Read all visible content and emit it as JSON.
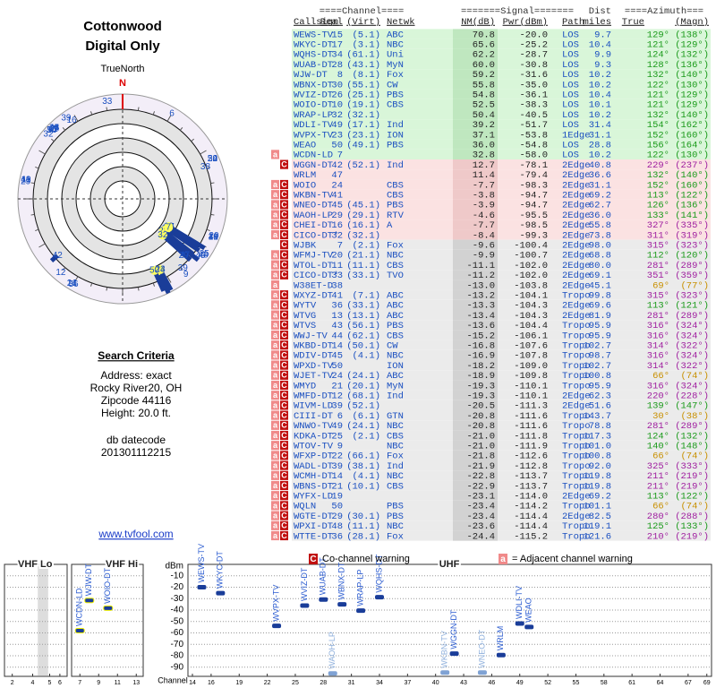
{
  "header": {
    "title": "Cottonwood",
    "subtitle": "Digital Only"
  },
  "compass": {
    "label": "TrueNorth",
    "north": "N"
  },
  "search": {
    "heading": "Search Criteria",
    "lines": [
      "Address: exact",
      "Rocky River20, OH",
      "Zipcode 44116",
      "Height: 20.0 ft."
    ],
    "datecode_label": "db datecode",
    "datecode": "201301112215"
  },
  "link": "www.tvfool.com",
  "table": {
    "groups": [
      "====Channel====",
      "=======Signal=======",
      "Dist",
      "====Azimuth==="
    ],
    "columns": [
      "Callsign",
      "Real",
      "(Virt)",
      "Netwk",
      "NM(dB)",
      "Pwr(dBm)",
      "Path",
      "miles",
      "True",
      "(Magn)"
    ],
    "rows": [
      {
        "call": "WEWS-TV",
        "real": "15",
        "virt": "(5.1)",
        "net": "ABC",
        "nm": "70.8",
        "pwr": "-20.0",
        "path": "LOS",
        "dist": "9.7",
        "az": "129°",
        "magn": "(138°)"
      },
      {
        "call": "WKYC-DT",
        "real": "17",
        "virt": "(3.1)",
        "net": "NBC",
        "nm": "65.6",
        "pwr": "-25.2",
        "path": "LOS",
        "dist": "10.4",
        "az": "121°",
        "magn": "(129°)"
      },
      {
        "call": "WQHS-DT",
        "real": "34",
        "virt": "(61.1)",
        "net": "Uni",
        "nm": "62.2",
        "pwr": "-28.7",
        "path": "LOS",
        "dist": "9.9",
        "az": "124°",
        "magn": "(132°)"
      },
      {
        "call": "WUAB-DT",
        "real": "28",
        "virt": "(43.1)",
        "net": "MyN",
        "nm": "60.0",
        "pwr": "-30.8",
        "path": "LOS",
        "dist": "9.3",
        "az": "128°",
        "magn": "(136°)"
      },
      {
        "call": "WJW-DT",
        "real": "8",
        "virt": "(8.1)",
        "net": "Fox",
        "nm": "59.2",
        "pwr": "-31.6",
        "path": "LOS",
        "dist": "10.2",
        "az": "132°",
        "magn": "(140°)"
      },
      {
        "call": "WBNX-DT",
        "real": "30",
        "virt": "(55.1)",
        "net": "CW",
        "nm": "55.8",
        "pwr": "-35.0",
        "path": "LOS",
        "dist": "10.2",
        "az": "122°",
        "magn": "(130°)"
      },
      {
        "call": "WVIZ-DT",
        "real": "26",
        "virt": "(25.1)",
        "net": "PBS",
        "nm": "54.8",
        "pwr": "-36.1",
        "path": "LOS",
        "dist": "10.4",
        "az": "121°",
        "magn": "(129°)"
      },
      {
        "call": "WOIO-DT",
        "real": "10",
        "virt": "(19.1)",
        "net": "CBS",
        "nm": "52.5",
        "pwr": "-38.3",
        "path": "LOS",
        "dist": "10.1",
        "az": "121°",
        "magn": "(129°)"
      },
      {
        "call": "WRAP-LP",
        "real": "32",
        "virt": "(32.1)",
        "nm": "50.4",
        "pwr": "-40.5",
        "path": "LOS",
        "dist": "10.2",
        "az": "132°",
        "magn": "(140°)"
      },
      {
        "call": "WDLI-TV",
        "real": "49",
        "virt": "(17.1)",
        "net": "Ind",
        "nm": "39.2",
        "pwr": "-51.7",
        "path": "LOS",
        "dist": "31.4",
        "az": "154°",
        "magn": "(162°)"
      },
      {
        "call": "WVPX-TV",
        "real": "23",
        "virt": "(23.1)",
        "net": "ION",
        "nm": "37.1",
        "pwr": "-53.8",
        "path": "1Edge",
        "dist": "31.1",
        "az": "152°",
        "magn": "(160°)"
      },
      {
        "call": "WEAO",
        "real": "50",
        "virt": "(49.1)",
        "net": "PBS",
        "nm": "36.0",
        "pwr": "-54.8",
        "path": "LOS",
        "dist": "28.8",
        "az": "156°",
        "magn": "(164°)"
      },
      {
        "call": "WCDN-LD",
        "real": "7",
        "nm": "32.8",
        "pwr": "-58.0",
        "path": "LOS",
        "dist": "10.2",
        "az": "122°",
        "magn": "(130°)",
        "warn": [
          "a"
        ]
      },
      {
        "call": "WGGN-DT",
        "real": "42",
        "virt": "(52.1)",
        "net": "Ind",
        "nm": "12.7",
        "pwr": "-78.1",
        "path": "2Edge",
        "dist": "40.8",
        "az": "229°",
        "magn": "(237°)",
        "warn": [
          "C"
        ]
      },
      {
        "call": "WRLM",
        "real": "47",
        "nm": "11.4",
        "pwr": "-79.4",
        "path": "2Edge",
        "dist": "36.6",
        "az": "132°",
        "magn": "(140°)"
      },
      {
        "call": "WOIO",
        "real": "24",
        "net": "CBS",
        "nm": "-7.7",
        "pwr": "-98.3",
        "path": "2Edge",
        "dist": "31.1",
        "az": "152°",
        "magn": "(160°)",
        "warn": [
          "a",
          "C"
        ]
      },
      {
        "call": "WKBN-TV",
        "real": "41",
        "net": "CBS",
        "nm": "-3.8",
        "pwr": "-94.7",
        "path": "2Edge",
        "dist": "69.2",
        "az": "113°",
        "magn": "(122°)",
        "warn": [
          "a",
          "C"
        ]
      },
      {
        "call": "WNEO-DT",
        "real": "45",
        "virt": "(45.1)",
        "net": "PBS",
        "nm": "-3.9",
        "pwr": "-94.7",
        "path": "2Edge",
        "dist": "62.7",
        "az": "126°",
        "magn": "(136°)",
        "warn": [
          "a",
          "C"
        ]
      },
      {
        "call": "WAOH-LP",
        "real": "29",
        "virt": "(29.1)",
        "net": "RTV",
        "nm": "-4.6",
        "pwr": "-95.5",
        "path": "2Edge",
        "dist": "36.0",
        "az": "133°",
        "magn": "(141°)",
        "warn": [
          "a",
          "C"
        ]
      },
      {
        "call": "CHEI-DT",
        "real": "16",
        "virt": "(16.1)",
        "net": "A",
        "nm": "-7.7",
        "pwr": "-98.5",
        "path": "2Edge",
        "dist": "55.8",
        "az": "327°",
        "magn": "(335°)",
        "warn": [
          "a",
          "C"
        ]
      },
      {
        "call": "CICO-DT*",
        "real": "32",
        "virt": "(32.1)",
        "nm": "-8.4",
        "pwr": "-99.3",
        "path": "2Edge",
        "dist": "73.8",
        "az": "311°",
        "magn": "(319°)",
        "warn": [
          "a",
          "C"
        ]
      },
      {
        "call": "WJBK",
        "real": "7",
        "virt": "(2.1)",
        "net": "Fox",
        "nm": "-9.6",
        "pwr": "-100.4",
        "path": "2Edge",
        "dist": "98.0",
        "az": "315°",
        "magn": "(323°)",
        "warn": [
          "C"
        ]
      },
      {
        "call": "WFMJ-TV",
        "real": "20",
        "virt": "(21.1)",
        "net": "NBC",
        "nm": "-9.9",
        "pwr": "-100.7",
        "path": "2Edge",
        "dist": "68.8",
        "az": "112°",
        "magn": "(120°)",
        "warn": [
          "a",
          "C"
        ]
      },
      {
        "call": "WTOL-DT",
        "real": "11",
        "virt": "(11.1)",
        "net": "CBS",
        "nm": "-11.1",
        "pwr": "-102.0",
        "path": "2Edge",
        "dist": "80.0",
        "az": "281°",
        "magn": "(289°)",
        "warn": [
          "a",
          "C"
        ]
      },
      {
        "call": "CICO-DT*",
        "real": "33",
        "virt": "(33.1)",
        "net": "TVO",
        "nm": "-11.2",
        "pwr": "-102.0",
        "path": "2Edge",
        "dist": "69.1",
        "az": "351°",
        "magn": "(359°)",
        "warn": [
          "a",
          "C"
        ]
      },
      {
        "call": "W38ET-D",
        "real": "38",
        "nm": "-13.0",
        "pwr": "-103.8",
        "path": "2Edge",
        "dist": "45.1",
        "az": "69°",
        "magn": "(77°)",
        "warn": [
          "a"
        ]
      },
      {
        "call": "WXYZ-DT",
        "real": "41",
        "virt": "(7.1)",
        "net": "ABC",
        "nm": "-13.2",
        "pwr": "-104.1",
        "path": "Tropo",
        "dist": "99.8",
        "az": "315°",
        "magn": "(323°)",
        "warn": [
          "a",
          "C"
        ]
      },
      {
        "call": "WYTV",
        "real": "36",
        "virt": "(33.1)",
        "net": "ABC",
        "nm": "-13.3",
        "pwr": "-104.3",
        "path": "2Edge",
        "dist": "69.6",
        "az": "113°",
        "magn": "(121°)",
        "warn": [
          "a",
          "C"
        ]
      },
      {
        "call": "WTVG",
        "real": "13",
        "virt": "(13.1)",
        "net": "ABC",
        "nm": "-13.4",
        "pwr": "-104.3",
        "path": "2Edge",
        "dist": "81.9",
        "az": "281°",
        "magn": "(289°)",
        "warn": [
          "a",
          "C"
        ]
      },
      {
        "call": "WTVS",
        "real": "43",
        "virt": "(56.1)",
        "net": "PBS",
        "nm": "-13.6",
        "pwr": "-104.4",
        "path": "Tropo",
        "dist": "95.9",
        "az": "316°",
        "magn": "(324°)",
        "warn": [
          "a",
          "C"
        ]
      },
      {
        "call": "WWJ-TV",
        "real": "44",
        "virt": "(62.1)",
        "net": "CBS",
        "nm": "-15.2",
        "pwr": "-106.1",
        "path": "Tropo",
        "dist": "95.9",
        "az": "316°",
        "magn": "(324°)",
        "warn": [
          "a",
          "C"
        ]
      },
      {
        "call": "WKBD-DT",
        "real": "14",
        "virt": "(50.1)",
        "net": "CW",
        "nm": "-16.8",
        "pwr": "-107.6",
        "path": "Tropo",
        "dist": "102.7",
        "az": "314°",
        "magn": "(322°)",
        "warn": [
          "a",
          "C"
        ]
      },
      {
        "call": "WDIV-DT",
        "real": "45",
        "virt": "(4.1)",
        "net": "NBC",
        "nm": "-16.9",
        "pwr": "-107.8",
        "path": "Tropo",
        "dist": "98.7",
        "az": "316°",
        "magn": "(324°)",
        "warn": [
          "a",
          "C"
        ]
      },
      {
        "call": "WPXD-TV",
        "real": "50",
        "net": "ION",
        "nm": "-18.2",
        "pwr": "-109.0",
        "path": "Tropo",
        "dist": "102.7",
        "az": "314°",
        "magn": "(322°)",
        "warn": [
          "a",
          "C"
        ]
      },
      {
        "call": "WJET-TV",
        "real": "24",
        "virt": "(24.1)",
        "net": "ABC",
        "nm": "-18.9",
        "pwr": "-109.8",
        "path": "Tropo",
        "dist": "100.8",
        "az": "66°",
        "magn": "(74°)",
        "warn": [
          "a",
          "C"
        ]
      },
      {
        "call": "WMYD",
        "real": "21",
        "virt": "(20.1)",
        "net": "MyN",
        "nm": "-19.3",
        "pwr": "-110.1",
        "path": "Tropo",
        "dist": "95.9",
        "az": "316°",
        "magn": "(324°)",
        "warn": [
          "a",
          "C"
        ]
      },
      {
        "call": "WMFD-DT",
        "real": "12",
        "virt": "(68.1)",
        "net": "Ind",
        "nm": "-19.3",
        "pwr": "-110.1",
        "path": "2Edge",
        "dist": "62.3",
        "az": "220°",
        "magn": "(228°)",
        "warn": [
          "a",
          "C"
        ]
      },
      {
        "call": "WIVM-LD",
        "real": "39",
        "virt": "(52.1)",
        "nm": "-20.5",
        "pwr": "-111.3",
        "path": "2Edge",
        "dist": "51.6",
        "az": "139°",
        "magn": "(147°)",
        "warn": [
          "a",
          "C"
        ]
      },
      {
        "call": "CIII-DT",
        "real": "6",
        "virt": "(6.1)",
        "net": "GTN",
        "nm": "-20.8",
        "pwr": "-111.6",
        "path": "Tropo",
        "dist": "143.7",
        "az": "30°",
        "magn": "(38°)",
        "warn": [
          "a",
          "C"
        ]
      },
      {
        "call": "WNWO-TV",
        "real": "49",
        "virt": "(24.1)",
        "net": "NBC",
        "nm": "-20.8",
        "pwr": "-111.6",
        "path": "Tropo",
        "dist": "78.8",
        "az": "281°",
        "magn": "(289°)",
        "warn": [
          "a",
          "C"
        ]
      },
      {
        "call": "KDKA-DT",
        "real": "25",
        "virt": "(2.1)",
        "net": "CBS",
        "nm": "-21.0",
        "pwr": "-111.8",
        "path": "Tropo",
        "dist": "117.3",
        "az": "124°",
        "magn": "(132°)",
        "warn": [
          "a",
          "C"
        ]
      },
      {
        "call": "WTOV-TV",
        "real": "9",
        "net": "NBC",
        "nm": "-21.0",
        "pwr": "-111.9",
        "path": "Tropo",
        "dist": "101.0",
        "az": "140°",
        "magn": "(148°)",
        "warn": [
          "a",
          "C"
        ]
      },
      {
        "call": "WFXP-DT",
        "real": "22",
        "virt": "(66.1)",
        "net": "Fox",
        "nm": "-21.8",
        "pwr": "-112.6",
        "path": "Tropo",
        "dist": "100.8",
        "az": "66°",
        "magn": "(74°)",
        "warn": [
          "a",
          "C"
        ]
      },
      {
        "call": "WADL-DT",
        "real": "39",
        "virt": "(38.1)",
        "net": "Ind",
        "nm": "-21.9",
        "pwr": "-112.8",
        "path": "Tropo",
        "dist": "92.0",
        "az": "325°",
        "magn": "(333°)",
        "warn": [
          "a",
          "C"
        ]
      },
      {
        "call": "WCMH-DT",
        "real": "14",
        "virt": "(4.1)",
        "net": "NBC",
        "nm": "-22.8",
        "pwr": "-113.7",
        "path": "Tropo",
        "dist": "119.8",
        "az": "211°",
        "magn": "(219°)",
        "warn": [
          "a",
          "C"
        ]
      },
      {
        "call": "WBNS-DT",
        "real": "21",
        "virt": "(10.1)",
        "net": "CBS",
        "nm": "-22.9",
        "pwr": "-113.7",
        "path": "Tropo",
        "dist": "119.8",
        "az": "211°",
        "magn": "(219°)",
        "warn": [
          "a",
          "C"
        ]
      },
      {
        "call": "WYFX-LD",
        "real": "19",
        "nm": "-23.1",
        "pwr": "-114.0",
        "path": "2Edge",
        "dist": "69.2",
        "az": "113°",
        "magn": "(122°)",
        "warn": [
          "a",
          "C"
        ]
      },
      {
        "call": "WQLN",
        "real": "50",
        "net": "PBS",
        "nm": "-23.4",
        "pwr": "-114.2",
        "path": "Tropo",
        "dist": "101.1",
        "az": "66°",
        "magn": "(74°)",
        "warn": [
          "a",
          "C"
        ]
      },
      {
        "call": "WGTE-DT",
        "real": "29",
        "virt": "(30.1)",
        "net": "PBS",
        "nm": "-23.4",
        "pwr": "-114.4",
        "path": "2Edge",
        "dist": "82.5",
        "az": "280°",
        "magn": "(288°)",
        "warn": [
          "a",
          "C"
        ]
      },
      {
        "call": "WPXI-DT",
        "real": "48",
        "virt": "(11.1)",
        "net": "NBC",
        "nm": "-23.6",
        "pwr": "-114.4",
        "path": "Tropo",
        "dist": "119.1",
        "az": "125°",
        "magn": "(133°)",
        "warn": [
          "a",
          "C"
        ]
      },
      {
        "call": "WTTE-DT",
        "real": "36",
        "virt": "(28.1)",
        "net": "Fox",
        "nm": "-24.4",
        "pwr": "-115.2",
        "path": "Tropo",
        "dist": "121.6",
        "az": "210°",
        "magn": "(219°)",
        "warn": [
          "a",
          "C"
        ]
      }
    ]
  },
  "spectrum": {
    "type": "spectrum",
    "y_label": "dBm",
    "x_label": "Channel",
    "bands": [
      "VHF Lo",
      "VHF Hi",
      "UHF"
    ],
    "ylim": [
      -98,
      0
    ],
    "yticks": [
      -10,
      -20,
      -30,
      -40,
      -50,
      -60,
      -70,
      -80,
      -90
    ],
    "xticks": [
      2,
      4,
      5,
      6,
      7,
      9,
      11,
      13,
      14,
      16,
      19,
      22,
      25,
      28,
      31,
      34,
      37,
      40,
      43,
      46,
      49,
      52,
      55,
      58,
      61,
      64,
      67,
      69
    ],
    "legend": {
      "co_icon": "C",
      "co": "Co-channel warning",
      "adj_icon": "a",
      "adj": "= Adjacent channel warning"
    }
  }
}
